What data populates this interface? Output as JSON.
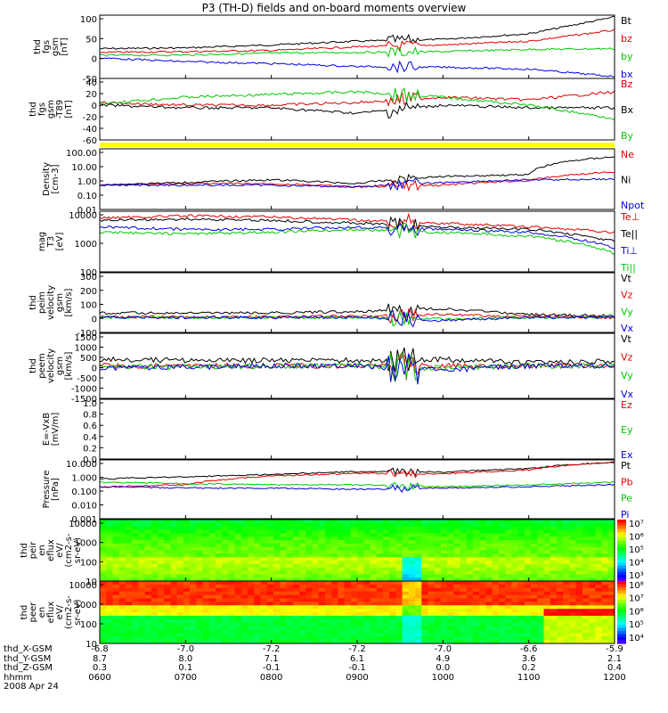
{
  "title": "P3 (TH-D) fields and on-board moments overview",
  "colors": {
    "black": "#000000",
    "red": "#e00000",
    "green": "#00c800",
    "blue": "#0000e0",
    "yellow": "#ffff00"
  },
  "panels": [
    {
      "id": "fgs_gsm",
      "ylabel": [
        "thd",
        "fgs",
        "gsm",
        "[nT]"
      ],
      "ticks": [
        "100",
        "50",
        "0",
        "-50"
      ],
      "ylim": [
        -60,
        110
      ],
      "scale": "linear",
      "legend": [
        {
          "text": "Bt",
          "color": "black"
        },
        {
          "text": "bz",
          "color": "red"
        },
        {
          "text": "by",
          "color": "green"
        },
        {
          "text": "bx",
          "color": "blue"
        }
      ]
    },
    {
      "id": "fgs_dsl",
      "ylabel": [
        "thd",
        "fgs",
        "gsm",
        "-T89",
        "[nT]"
      ],
      "ticks": [
        "40",
        "20",
        "0",
        "-20",
        "-40",
        "-60"
      ],
      "ylim": [
        -70,
        45
      ],
      "scale": "linear",
      "legend": [
        {
          "text": "Bz",
          "color": "red"
        },
        {
          "text": "Bx",
          "color": "black"
        },
        {
          "text": "By",
          "color": "green"
        }
      ]
    },
    {
      "id": "flag",
      "ylabel": [],
      "ticks": [],
      "legend": []
    },
    {
      "id": "density",
      "ylabel": [
        "Density",
        "[cm-3]"
      ],
      "ticks": [
        "100.00",
        "10.00",
        "1.00",
        "0.10",
        "0.01"
      ],
      "ylim": [
        0.01,
        100
      ],
      "scale": "log",
      "legend": [
        {
          "text": "Ne",
          "color": "red"
        },
        {
          "text": "Ni",
          "color": "black"
        },
        {
          "text": "Npot",
          "color": "blue"
        }
      ]
    },
    {
      "id": "temp",
      "ylabel": [
        "mag",
        "T3",
        "[eV]"
      ],
      "ticks": [
        "10000",
        "1000",
        "100"
      ],
      "ylim": [
        100,
        10000
      ],
      "scale": "log",
      "legend": [
        {
          "text": "Te⊥",
          "color": "red"
        },
        {
          "text": "Te||",
          "color": "black"
        },
        {
          "text": "Ti⊥",
          "color": "blue"
        },
        {
          "text": "Ti||",
          "color": "green"
        }
      ]
    },
    {
      "id": "peim_v",
      "ylabel": [
        "thd",
        "peim",
        "velocity",
        "gsm",
        "[km/s]"
      ],
      "ticks": [
        "300",
        "200",
        "100",
        "0",
        "-100"
      ],
      "ylim": [
        -100,
        300
      ],
      "scale": "linear",
      "legend": [
        {
          "text": "Vt",
          "color": "black"
        },
        {
          "text": "Vz",
          "color": "red"
        },
        {
          "text": "Vy",
          "color": "green"
        },
        {
          "text": "Vx",
          "color": "blue"
        }
      ]
    },
    {
      "id": "peem_v",
      "ylabel": [
        "thd",
        "peem",
        "velocity",
        "gsm",
        "[km/s]"
      ],
      "ticks": [
        "1500",
        "1000",
        "500",
        "0",
        "-500",
        "-1000",
        "-1500"
      ],
      "ylim": [
        -1500,
        1500
      ],
      "scale": "linear",
      "legend": [
        {
          "text": "Vt",
          "color": "black"
        },
        {
          "text": "Vz",
          "color": "red"
        },
        {
          "text": "Vy",
          "color": "green"
        },
        {
          "text": "Vx",
          "color": "blue"
        }
      ]
    },
    {
      "id": "efield",
      "ylabel": [
        "E=-VxB",
        "[mV/m]"
      ],
      "ticks": [
        "1.0",
        "0.8",
        "0.6",
        "0.4",
        "0.2",
        "0.0"
      ],
      "ylim": [
        0,
        1
      ],
      "scale": "linear",
      "legend": [
        {
          "text": "Ez",
          "color": "red"
        },
        {
          "text": "Ey",
          "color": "green"
        },
        {
          "text": "Ex",
          "color": "blue"
        }
      ]
    },
    {
      "id": "pressure",
      "ylabel": [
        "Pressure",
        "[nPa]"
      ],
      "ticks": [
        "10.000",
        "1.000",
        "0.100",
        "0.010",
        "0.001"
      ],
      "ylim": [
        0.001,
        10
      ],
      "scale": "log",
      "legend": [
        {
          "text": "Pt",
          "color": "black"
        },
        {
          "text": "Pb",
          "color": "red"
        },
        {
          "text": "Pe",
          "color": "green"
        },
        {
          "text": "Pi",
          "color": "blue"
        }
      ]
    },
    {
      "id": "peir_spec",
      "ylabel": [
        "thd",
        "peir",
        "en",
        "eflux",
        "eV/",
        "(cm2-s-",
        "sr-eV)"
      ],
      "ticks": [
        "10000",
        "1000",
        "100",
        "10"
      ],
      "ylim": [
        10,
        20000
      ],
      "scale": "log",
      "colorbar": [
        "10⁷",
        "10⁶",
        "10⁵",
        "10⁴",
        "10³"
      ]
    },
    {
      "id": "peer_spec",
      "ylabel": [
        "thd",
        "peer",
        "en",
        "eflux",
        "eV/",
        "(cm2-s-",
        "sr-eV)"
      ],
      "ticks": [
        "10000",
        "1000",
        "100",
        "10"
      ],
      "ylim": [
        10,
        20000
      ],
      "scale": "log",
      "colorbar": [
        "10⁸",
        "10⁷",
        "10⁶",
        "10⁵",
        "10⁴"
      ]
    }
  ],
  "x_axis": {
    "rows": [
      {
        "label": "thd_X-GSM",
        "values": [
          "-6.8",
          "-7.0",
          "-7.2",
          "-7.2",
          "-7.0",
          "-6.6",
          "-5.9"
        ]
      },
      {
        "label": "thd_Y-GSM",
        "values": [
          "8.7",
          "8.0",
          "7.1",
          "6.1",
          "4.9",
          "3.6",
          "2.1"
        ]
      },
      {
        "label": "thd_Z-GSM",
        "values": [
          "0.3",
          "0.1",
          "-0.1",
          "-0.1",
          "0.0",
          "0.2",
          "0.4"
        ]
      },
      {
        "label": "hhmm",
        "values": [
          "0600",
          "0700",
          "0800",
          "0900",
          "1000",
          "1100",
          "1200"
        ]
      }
    ],
    "date": "2008 Apr 24"
  },
  "chart_data": {
    "type": "line",
    "x": [
      "0600",
      "0700",
      "0800",
      "0900",
      "1000",
      "1100",
      "1200"
    ],
    "series": [
      {
        "name": "Bt",
        "values": [
          20,
          22,
          30,
          40,
          45,
          60,
          105
        ]
      },
      {
        "name": "bz",
        "values": [
          10,
          12,
          15,
          25,
          30,
          40,
          70
        ]
      },
      {
        "name": "by",
        "values": [
          2,
          3,
          8,
          10,
          12,
          18,
          20
        ]
      },
      {
        "name": "bx",
        "values": [
          -5,
          -15,
          -20,
          -28,
          -30,
          -35,
          -55
        ]
      },
      {
        "name": "Ne",
        "values": [
          0.4,
          0.5,
          0.5,
          0.3,
          0.4,
          0.8,
          3.0
        ]
      },
      {
        "name": "Ni",
        "values": [
          0.4,
          0.6,
          0.9,
          0.5,
          1.5,
          2.0,
          30.0
        ]
      },
      {
        "name": "Npot",
        "values": [
          0.4,
          0.4,
          0.4,
          0.3,
          0.6,
          0.9,
          1.0
        ]
      },
      {
        "name": "Pt",
        "values": [
          0.5,
          0.7,
          1.0,
          1.6,
          1.5,
          2.5,
          7.0
        ]
      },
      {
        "name": "Pb",
        "values": [
          0.15,
          0.2,
          0.8,
          1.2,
          1.1,
          2.0,
          7.0
        ]
      },
      {
        "name": "Pe",
        "values": [
          0.3,
          0.25,
          0.2,
          0.2,
          0.15,
          0.2,
          0.3
        ]
      },
      {
        "name": "Pi",
        "values": [
          0.15,
          0.12,
          0.12,
          0.1,
          0.12,
          0.15,
          0.2
        ]
      }
    ]
  }
}
